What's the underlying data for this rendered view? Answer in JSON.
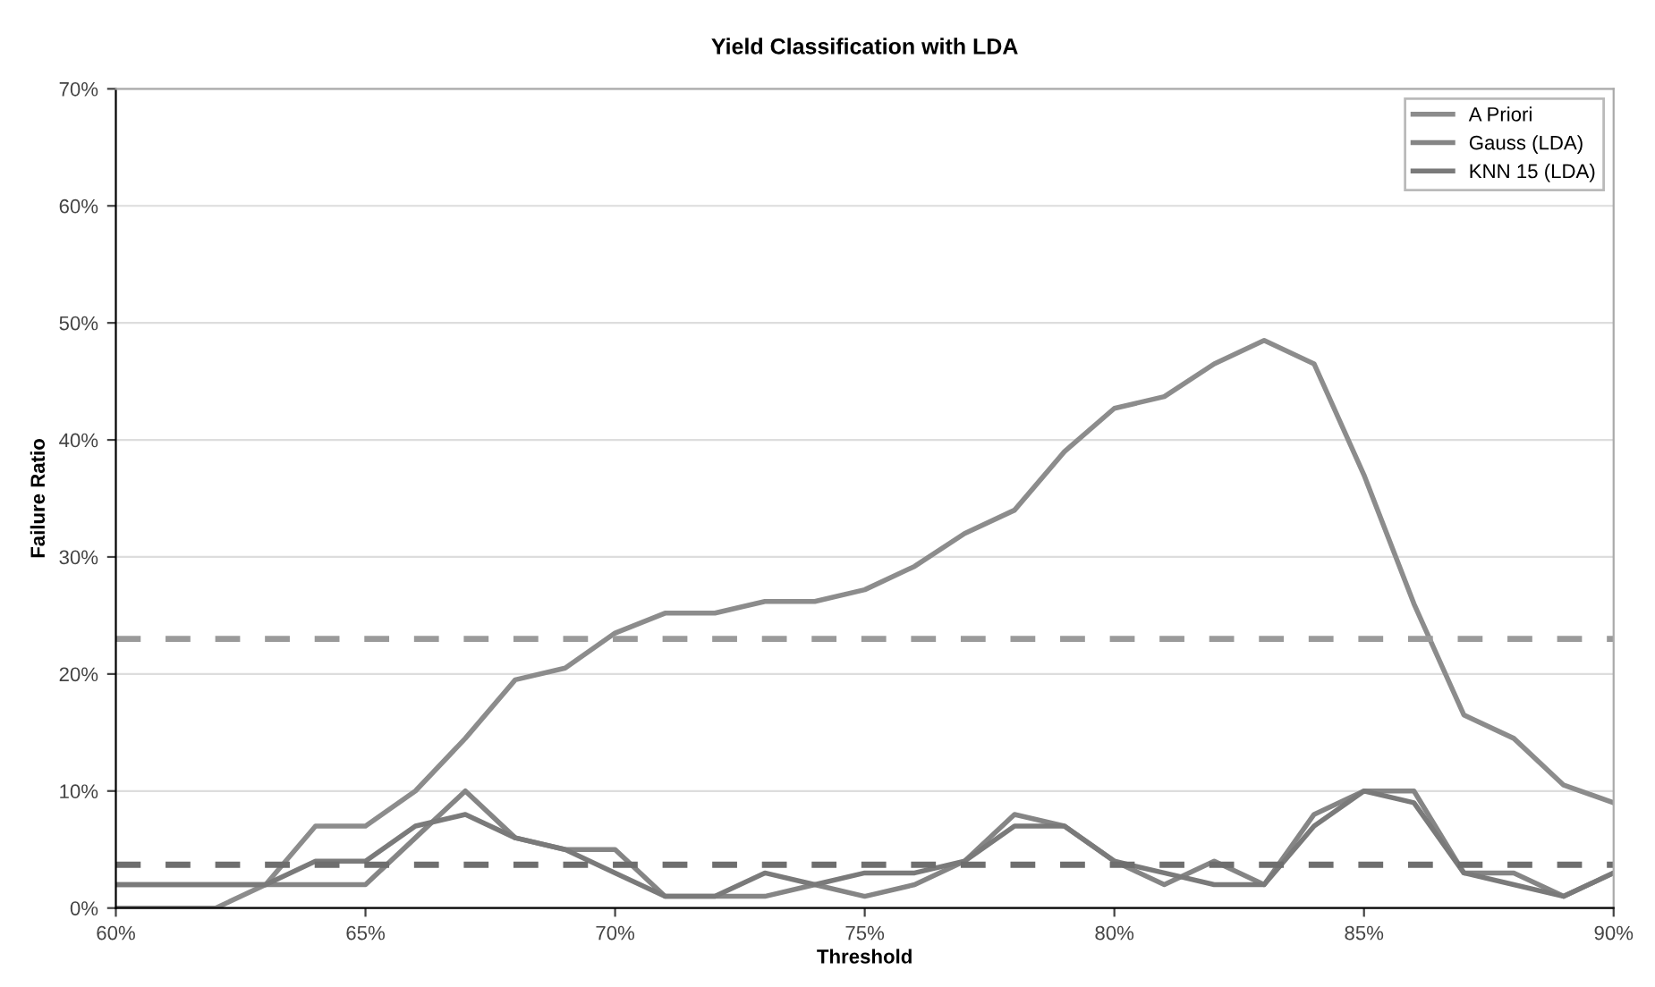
{
  "chart_data": {
    "type": "line",
    "title": "Yield Classification with LDA",
    "xlabel": "Threshold",
    "ylabel": "Failure Ratio",
    "x": [
      60,
      61,
      62,
      63,
      64,
      65,
      66,
      67,
      68,
      69,
      70,
      71,
      72,
      73,
      74,
      75,
      76,
      77,
      78,
      79,
      80,
      81,
      82,
      83,
      84,
      85,
      86,
      87,
      88,
      89,
      90
    ],
    "series": [
      {
        "name": "A Priori",
        "color": "#8c8c8c",
        "values": [
          0,
          0,
          0,
          2,
          7,
          7,
          10,
          14.5,
          19.5,
          20.5,
          23.5,
          25.2,
          25.2,
          26.2,
          26.2,
          27.2,
          29.2,
          32,
          34,
          39,
          42.7,
          43.7,
          46.5,
          48.5,
          46.5,
          37,
          26,
          16.5,
          14.5,
          10.5,
          9
        ]
      },
      {
        "name": "Gauss (LDA)",
        "color": "#858585",
        "values": [
          2,
          2,
          2,
          2,
          2,
          2,
          6,
          10,
          6,
          5,
          5,
          1,
          1,
          1,
          2,
          1,
          2,
          4,
          8,
          7,
          4,
          2,
          4,
          2,
          8,
          10,
          10,
          3,
          3,
          1,
          3
        ]
      },
      {
        "name": "KNN 15 (LDA)",
        "color": "#7a7a7a",
        "values": [
          2,
          2,
          2,
          2,
          4,
          4,
          7,
          8,
          6,
          5,
          3,
          1,
          1,
          3,
          2,
          3,
          3,
          4,
          7,
          7,
          4,
          3,
          2,
          2,
          7,
          10,
          9,
          3,
          2,
          1,
          3
        ]
      }
    ],
    "xlim": [
      60,
      90
    ],
    "ylim": [
      0,
      70
    ],
    "xticks": [
      {
        "value": 60,
        "label": "60%"
      },
      {
        "value": 65,
        "label": "65%"
      },
      {
        "value": 70,
        "label": "70%"
      },
      {
        "value": 75,
        "label": "75%"
      },
      {
        "value": 80,
        "label": "80%"
      },
      {
        "value": 85,
        "label": "85%"
      },
      {
        "value": 90,
        "label": "90%"
      }
    ],
    "yticks": [
      {
        "value": 0,
        "label": "0%"
      },
      {
        "value": 10,
        "label": "10%"
      },
      {
        "value": 20,
        "label": "20%"
      },
      {
        "value": 30,
        "label": "30%"
      },
      {
        "value": 40,
        "label": "40%"
      },
      {
        "value": 50,
        "label": "50%"
      },
      {
        "value": 60,
        "label": "60%"
      },
      {
        "value": 70,
        "label": "70%"
      }
    ],
    "ref_lines": [
      {
        "axis": "y",
        "value": 23,
        "color": "#9a9a9a",
        "line_style": "dashed"
      },
      {
        "axis": "y",
        "value": 3.7,
        "color": "#6e6e6e",
        "line_style": "dashed"
      }
    ],
    "grid": "y",
    "legend": "top right"
  }
}
